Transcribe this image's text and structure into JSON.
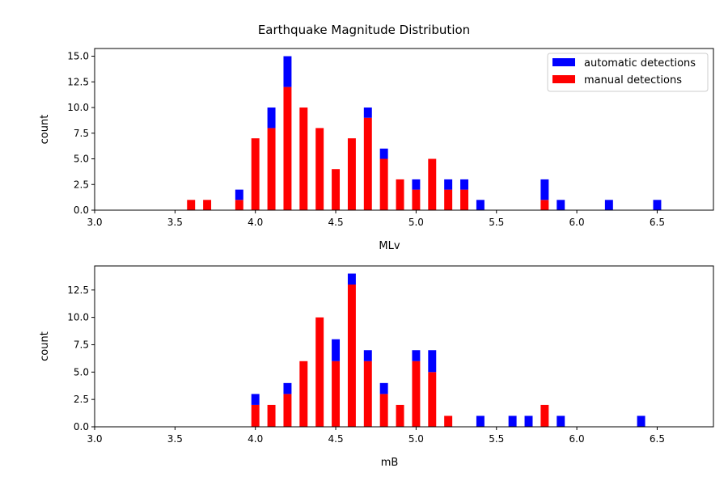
{
  "title": "Earthquake Magnitude Distribution",
  "legend": {
    "placement": "top-right",
    "entries": [
      {
        "label": "automatic detections",
        "color": "#0000ff"
      },
      {
        "label": "manual detections",
        "color": "#ff0000"
      }
    ]
  },
  "chart_data": [
    {
      "type": "bar",
      "stacked": true,
      "xlabel": "MLv",
      "ylabel": "count",
      "xlim": [
        3.0,
        6.85
      ],
      "ylim": [
        0,
        15.75
      ],
      "xticks": [
        "3.0",
        "3.5",
        "4.0",
        "4.5",
        "5.0",
        "5.5",
        "6.0",
        "6.5"
      ],
      "yticks": [
        "0.0",
        "2.5",
        "5.0",
        "7.5",
        "10.0",
        "12.5",
        "15.0"
      ],
      "x": [
        3.6,
        3.7,
        3.9,
        4.0,
        4.1,
        4.2,
        4.3,
        4.4,
        4.5,
        4.6,
        4.7,
        4.8,
        4.9,
        5.0,
        5.1,
        5.2,
        5.3,
        5.4,
        5.8,
        5.9,
        6.2,
        6.5
      ],
      "series": [
        {
          "name": "manual detections",
          "color": "#ff0000",
          "values": [
            1,
            1,
            1,
            7,
            8,
            12,
            10,
            8,
            4,
            7,
            9,
            5,
            3,
            2,
            5,
            2,
            2,
            0,
            1,
            0,
            0,
            0
          ]
        },
        {
          "name": "automatic detections",
          "color": "#0000ff",
          "values": [
            0,
            0,
            1,
            0,
            2,
            3,
            0,
            0,
            0,
            0,
            1,
            1,
            0,
            1,
            0,
            1,
            1,
            1,
            2,
            1,
            1,
            1
          ]
        }
      ]
    },
    {
      "type": "bar",
      "stacked": true,
      "xlabel": "mB",
      "ylabel": "count",
      "xlim": [
        3.0,
        6.85
      ],
      "ylim": [
        0,
        14.7
      ],
      "xticks": [
        "3.0",
        "3.5",
        "4.0",
        "4.5",
        "5.0",
        "5.5",
        "6.0",
        "6.5"
      ],
      "yticks": [
        "0.0",
        "2.5",
        "5.0",
        "7.5",
        "10.0",
        "12.5"
      ],
      "x": [
        4.0,
        4.1,
        4.2,
        4.3,
        4.4,
        4.5,
        4.6,
        4.7,
        4.8,
        4.9,
        5.0,
        5.1,
        5.2,
        5.4,
        5.6,
        5.7,
        5.8,
        5.9,
        6.4
      ],
      "series": [
        {
          "name": "manual detections",
          "color": "#ff0000",
          "values": [
            2,
            2,
            3,
            6,
            10,
            6,
            13,
            6,
            3,
            2,
            6,
            5,
            1,
            0,
            0,
            0,
            2,
            0,
            0
          ]
        },
        {
          "name": "automatic detections",
          "color": "#0000ff",
          "values": [
            1,
            0,
            1,
            0,
            0,
            2,
            1,
            1,
            1,
            0,
            1,
            2,
            0,
            1,
            1,
            1,
            0,
            1,
            1
          ]
        }
      ]
    }
  ]
}
